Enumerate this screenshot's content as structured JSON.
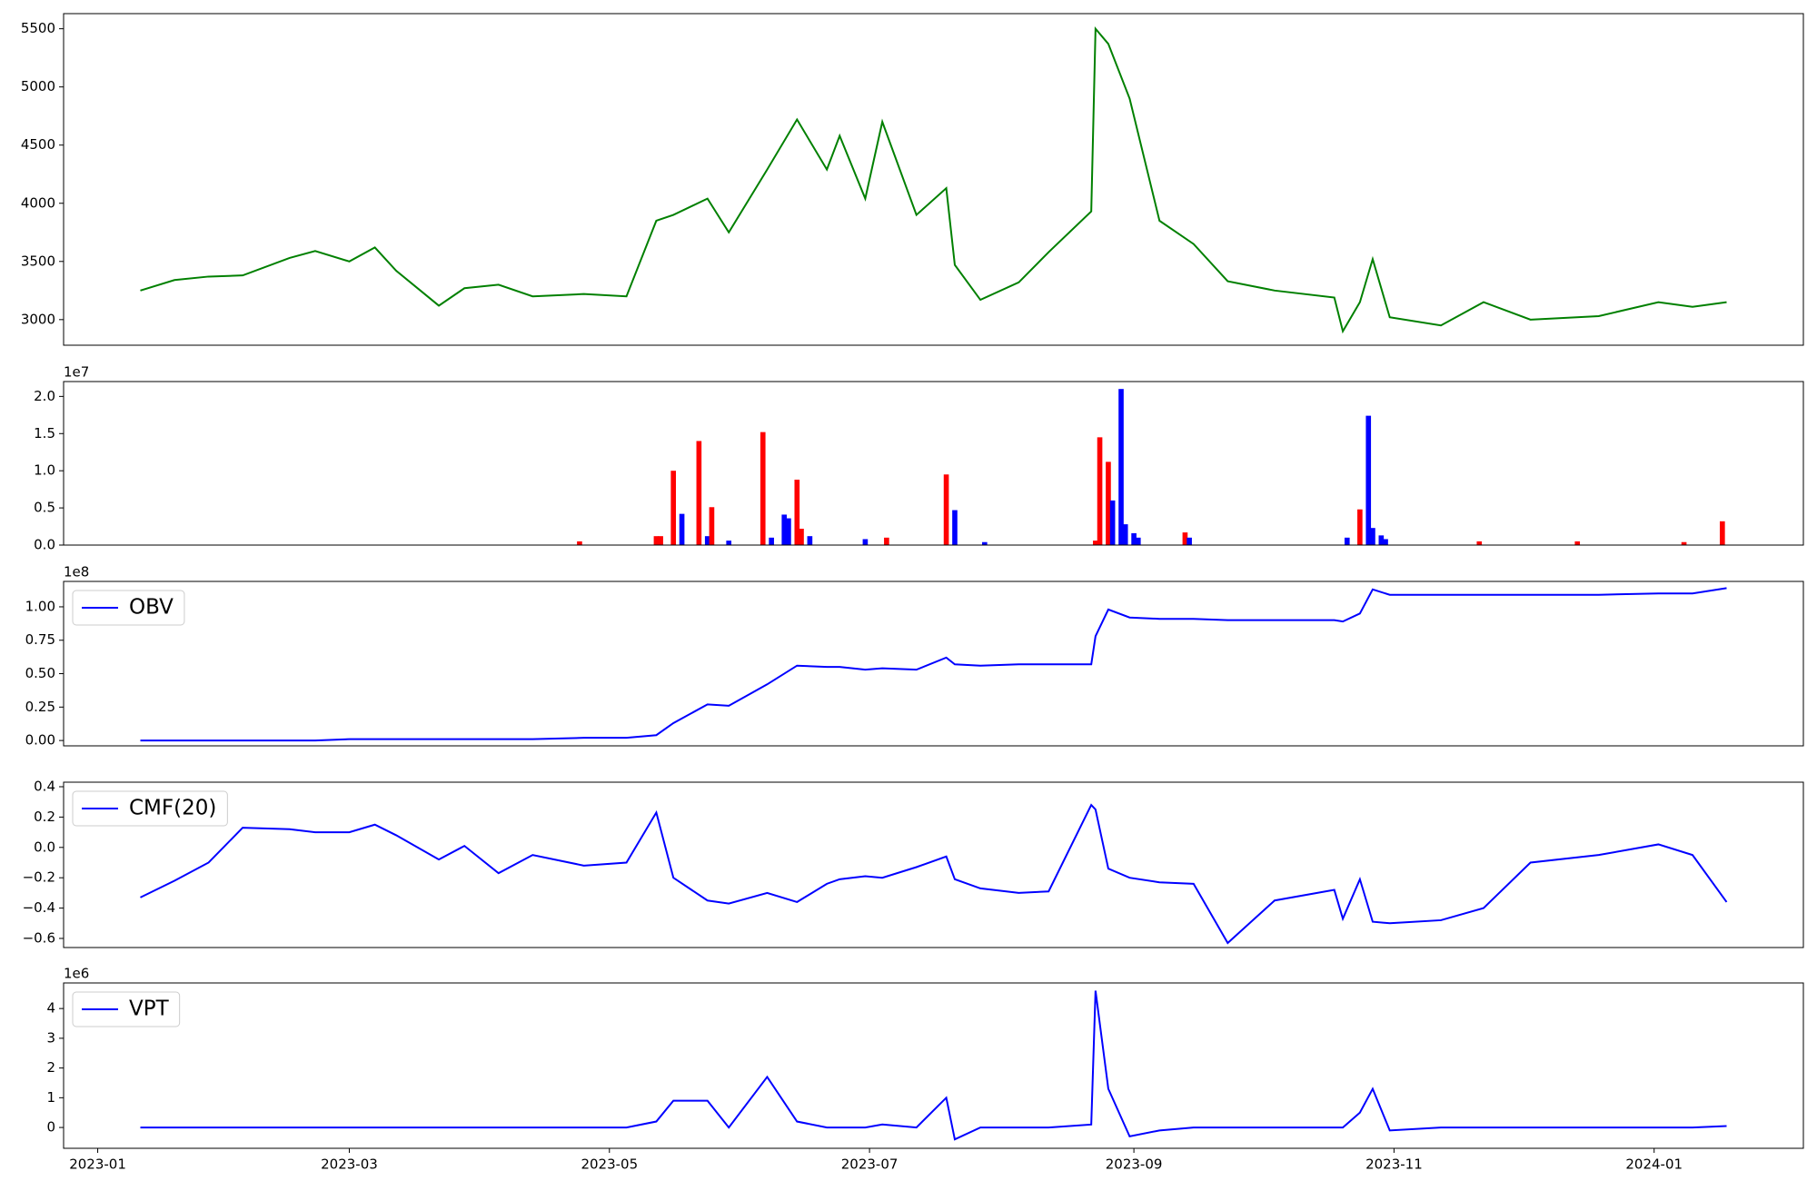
{
  "chart_data": [
    {
      "type": "line",
      "x": [
        10,
        18,
        26,
        34,
        45,
        51,
        59,
        65,
        70,
        80,
        86,
        94,
        102,
        114,
        124,
        131,
        135,
        143,
        148,
        157,
        164,
        171,
        174,
        180,
        184,
        192,
        199,
        201,
        207,
        216,
        223,
        233,
        234,
        237,
        242,
        249,
        257,
        265,
        276,
        290,
        292,
        296,
        299,
        303,
        315,
        325,
        336,
        352,
        366,
        374,
        382
      ],
      "values": [
        3250,
        3340,
        3370,
        3380,
        3530,
        3590,
        3500,
        3620,
        3420,
        3120,
        3270,
        3300,
        3200,
        3220,
        3200,
        3850,
        3900,
        4040,
        3750,
        4290,
        4720,
        4290,
        4580,
        4040,
        4700,
        3900,
        4130,
        3470,
        3170,
        3320,
        3580,
        3930,
        5500,
        5370,
        4900,
        3850,
        3650,
        3330,
        3250,
        3190,
        2900,
        3150,
        3520,
        3020,
        2950,
        3150,
        3000,
        3030,
        3150,
        3110,
        3150
      ],
      "color": "#008000",
      "xlim": [
        -8,
        400
      ],
      "ylim": [
        2780,
        5630
      ],
      "yticks": [
        3000,
        3500,
        4000,
        4500,
        5000,
        5500
      ]
    },
    {
      "type": "bar",
      "offset_label": "1e7",
      "x": [
        113,
        131,
        132,
        135,
        137,
        141,
        143,
        144,
        148,
        156,
        158,
        161,
        162,
        164,
        165,
        167,
        180,
        185,
        199,
        201,
        208,
        234,
        235,
        237,
        238,
        240,
        241,
        243,
        244,
        255,
        256,
        293,
        296,
        298,
        299,
        301,
        302,
        324,
        347,
        372,
        381
      ],
      "values": [
        0.05,
        0.12,
        0.12,
        1.0,
        0.42,
        1.4,
        0.12,
        0.51,
        0.06,
        1.52,
        0.1,
        0.41,
        0.36,
        0.88,
        0.22,
        0.12,
        0.08,
        0.1,
        0.95,
        0.47,
        0.04,
        0.06,
        1.45,
        1.12,
        0.6,
        2.1,
        0.28,
        0.16,
        0.1,
        0.17,
        0.1,
        0.1,
        0.48,
        1.74,
        0.23,
        0.13,
        0.08,
        0.05,
        0.05,
        0.04,
        0.32
      ],
      "colors": [
        "#ff0000",
        "#ff0000",
        "#ff0000",
        "#ff0000",
        "#0000ff",
        "#ff0000",
        "#0000ff",
        "#ff0000",
        "#0000ff",
        "#ff0000",
        "#0000ff",
        "#0000ff",
        "#0000ff",
        "#ff0000",
        "#ff0000",
        "#0000ff",
        "#0000ff",
        "#ff0000",
        "#ff0000",
        "#0000ff",
        "#0000ff",
        "#ff0000",
        "#ff0000",
        "#ff0000",
        "#0000ff",
        "#0000ff",
        "#0000ff",
        "#0000ff",
        "#0000ff",
        "#ff0000",
        "#0000ff",
        "#0000ff",
        "#ff0000",
        "#0000ff",
        "#0000ff",
        "#0000ff",
        "#0000ff",
        "#ff0000",
        "#ff0000",
        "#ff0000",
        "#ff0000"
      ],
      "xlim": [
        -8,
        400
      ],
      "ylim": [
        0,
        2.2
      ],
      "yticks": [
        {
          "value": 0,
          "label": "0.0"
        },
        0.5,
        {
          "value": 1,
          "label": "1.0"
        },
        1.5,
        {
          "value": 2,
          "label": "2.0"
        }
      ]
    },
    {
      "type": "line",
      "offset_label": "1e8",
      "x": [
        10,
        18,
        26,
        34,
        45,
        51,
        59,
        65,
        70,
        80,
        86,
        94,
        102,
        114,
        124,
        131,
        135,
        143,
        148,
        157,
        164,
        171,
        174,
        180,
        184,
        192,
        199,
        201,
        207,
        216,
        223,
        233,
        234,
        237,
        242,
        249,
        257,
        265,
        276,
        290,
        292,
        296,
        299,
        303,
        315,
        325,
        336,
        352,
        366,
        374,
        382
      ],
      "series": [
        {
          "name": "OBV",
          "color": "#0000ff",
          "values": [
            0.0,
            0.0,
            0.0,
            0.0,
            0.0,
            0.0,
            0.01,
            0.01,
            0.01,
            0.01,
            0.01,
            0.01,
            0.01,
            0.02,
            0.02,
            0.04,
            0.13,
            0.27,
            0.26,
            0.42,
            0.56,
            0.55,
            0.55,
            0.53,
            0.54,
            0.53,
            0.62,
            0.57,
            0.56,
            0.57,
            0.57,
            0.57,
            0.78,
            0.98,
            0.92,
            0.91,
            0.91,
            0.9,
            0.9,
            0.9,
            0.89,
            0.95,
            1.13,
            1.09,
            1.09,
            1.09,
            1.09,
            1.09,
            1.1,
            1.1,
            1.14
          ]
        }
      ],
      "legend": "upper left",
      "xlim": [
        -8,
        400
      ],
      "ylim": [
        -0.04,
        1.19
      ],
      "yticks": [
        {
          "value": 0,
          "label": "0.00"
        },
        0.25,
        {
          "value": 0.5,
          "label": "0.50"
        },
        0.75,
        {
          "value": 1,
          "label": "1.00"
        }
      ]
    },
    {
      "type": "line",
      "x": [
        10,
        18,
        26,
        34,
        45,
        51,
        59,
        65,
        70,
        80,
        86,
        94,
        102,
        114,
        124,
        131,
        135,
        143,
        148,
        157,
        164,
        171,
        174,
        180,
        184,
        192,
        199,
        201,
        207,
        216,
        223,
        233,
        234,
        237,
        242,
        249,
        257,
        265,
        276,
        290,
        292,
        296,
        299,
        303,
        315,
        325,
        336,
        352,
        366,
        374,
        382
      ],
      "series": [
        {
          "name": "CMF(20)",
          "color": "#0000ff",
          "values": [
            -0.33,
            -0.22,
            -0.1,
            0.13,
            0.12,
            0.1,
            0.1,
            0.15,
            0.08,
            -0.08,
            0.01,
            -0.17,
            -0.05,
            -0.12,
            -0.1,
            0.23,
            -0.2,
            -0.35,
            -0.37,
            -0.3,
            -0.36,
            -0.24,
            -0.21,
            -0.19,
            -0.2,
            -0.13,
            -0.06,
            -0.21,
            -0.27,
            -0.3,
            -0.29,
            0.28,
            0.25,
            -0.14,
            -0.2,
            -0.23,
            -0.24,
            -0.63,
            -0.35,
            -0.28,
            -0.47,
            -0.21,
            -0.49,
            -0.5,
            -0.48,
            -0.4,
            -0.1,
            -0.05,
            0.02,
            -0.05,
            -0.36
          ]
        }
      ],
      "legend": "upper left",
      "xlim": [
        -8,
        400
      ],
      "ylim": [
        -0.66,
        0.43
      ],
      "yticks": [
        0.4,
        0.2,
        {
          "value": 0,
          "label": "0.0"
        },
        {
          "value": -0.2,
          "label": "−0.2"
        },
        {
          "value": -0.4,
          "label": "−0.4"
        },
        {
          "value": -0.6,
          "label": "−0.6"
        }
      ]
    },
    {
      "type": "line",
      "offset_label": "1e6",
      "x": [
        10,
        18,
        26,
        34,
        45,
        51,
        59,
        65,
        70,
        80,
        86,
        94,
        102,
        114,
        124,
        131,
        135,
        143,
        148,
        157,
        164,
        171,
        174,
        180,
        184,
        192,
        199,
        201,
        207,
        216,
        223,
        233,
        234,
        237,
        242,
        249,
        257,
        265,
        276,
        290,
        292,
        296,
        299,
        303,
        315,
        325,
        336,
        352,
        366,
        374,
        382
      ],
      "series": [
        {
          "name": "VPT",
          "color": "#0000ff",
          "values": [
            0,
            0,
            0,
            0,
            0,
            0,
            0,
            0,
            0,
            0,
            0,
            0,
            0,
            0,
            0,
            0.2,
            0.9,
            0.9,
            0,
            1.7,
            0.2,
            0,
            0,
            0,
            0.1,
            0,
            1.0,
            -0.4,
            0,
            0,
            0,
            0.1,
            4.6,
            1.3,
            -0.3,
            -0.1,
            0,
            0,
            0,
            0,
            0,
            0.5,
            1.3,
            -0.1,
            0,
            0,
            0,
            0,
            0,
            0,
            0.05
          ]
        }
      ],
      "legend": "upper left",
      "xlim": [
        -8,
        400
      ],
      "ylim": [
        -0.7,
        4.86
      ],
      "yticks": [
        0,
        1,
        2,
        3,
        4
      ],
      "xticks": [
        {
          "value": 0,
          "label": "2023-01"
        },
        {
          "value": 59,
          "label": "2023-03"
        },
        {
          "value": 120,
          "label": "2023-05"
        },
        {
          "value": 181,
          "label": "2023-07"
        },
        {
          "value": 243,
          "label": "2023-09"
        },
        {
          "value": 304,
          "label": "2023-11"
        },
        {
          "value": 365,
          "label": "2024-01"
        }
      ]
    }
  ]
}
